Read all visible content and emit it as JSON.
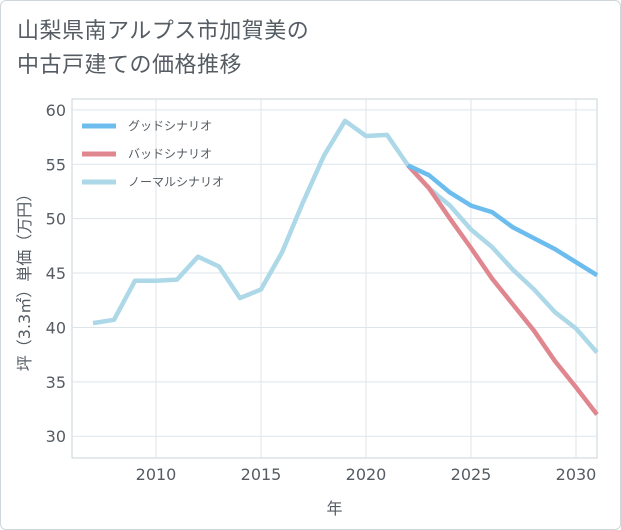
{
  "chart_data": {
    "type": "line",
    "title_lines": [
      "山梨県南アルプス市加賀美の",
      "中古戸建ての価格推移"
    ],
    "xlabel": "年",
    "ylabel": "坪（3.3㎡）単価（万円）",
    "xlim": [
      2006,
      2031
    ],
    "ylim": [
      28,
      61
    ],
    "x_ticks": [
      2010,
      2015,
      2020,
      2025,
      2030
    ],
    "y_ticks": [
      30,
      35,
      40,
      45,
      50,
      55,
      60
    ],
    "legend_position": "top-left",
    "series": [
      {
        "name": "グッドシナリオ",
        "color": "#6cbcee",
        "x": [
          2022,
          2023,
          2024,
          2025,
          2026,
          2027,
          2028,
          2029,
          2030,
          2031
        ],
        "y": [
          54.9,
          54.0,
          52.4,
          51.2,
          50.6,
          49.2,
          48.2,
          47.2,
          46.0,
          44.8
        ]
      },
      {
        "name": "バッドシナリオ",
        "color": "#e0868f",
        "x": [
          2022,
          2023,
          2024,
          2025,
          2026,
          2027,
          2028,
          2029,
          2030,
          2031
        ],
        "y": [
          54.9,
          52.8,
          50.0,
          47.3,
          44.5,
          42.1,
          39.7,
          36.9,
          34.5,
          32.0
        ]
      },
      {
        "name": "ノーマルシナリオ",
        "color": "#add8e8",
        "x": [
          2007,
          2008,
          2009,
          2010,
          2011,
          2012,
          2013,
          2014,
          2015,
          2016,
          2017,
          2018,
          2019,
          2020,
          2021,
          2022,
          2023,
          2024,
          2025,
          2026,
          2027,
          2028,
          2029,
          2030,
          2031
        ],
        "y": [
          40.4,
          40.7,
          44.3,
          44.3,
          44.4,
          46.5,
          45.6,
          42.7,
          43.5,
          46.9,
          51.5,
          55.8,
          59.0,
          57.6,
          57.7,
          54.9,
          52.8,
          51.2,
          49.0,
          47.4,
          45.3,
          43.5,
          41.4,
          39.9,
          37.7
        ]
      }
    ]
  }
}
